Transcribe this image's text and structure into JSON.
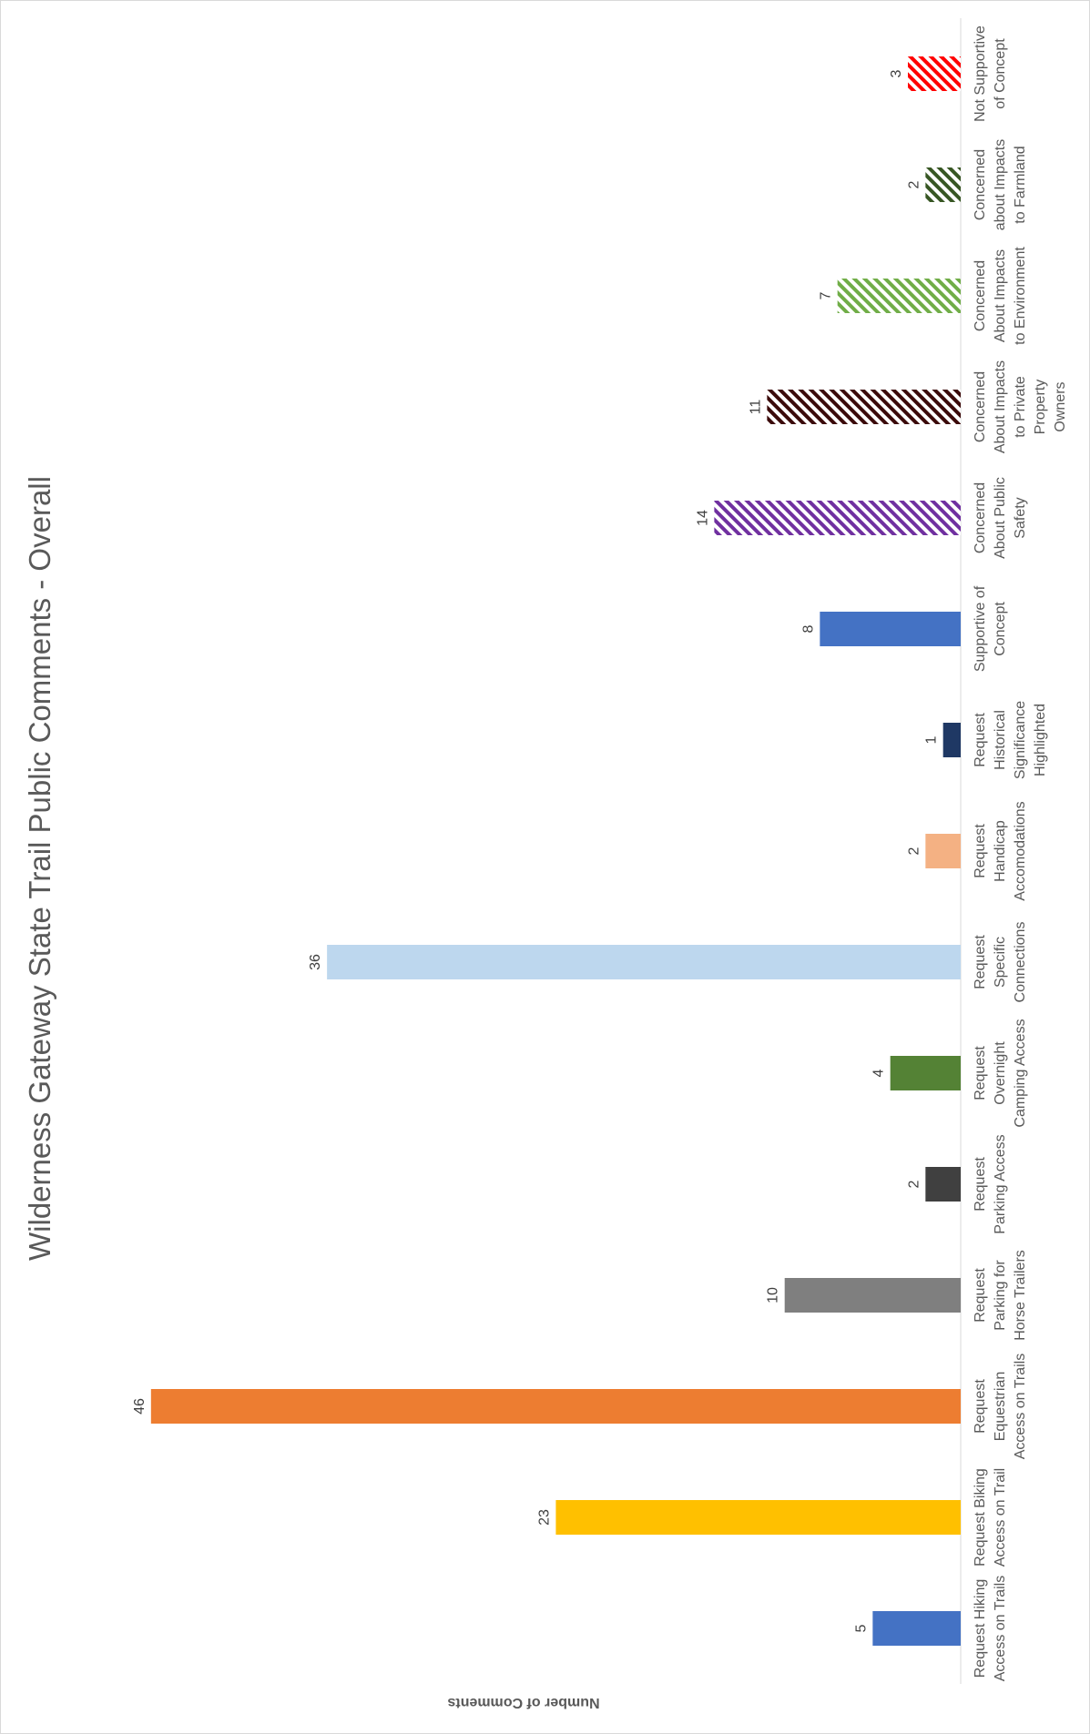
{
  "chart_data": {
    "type": "bar",
    "orientation": "rotated-90",
    "title": "Wilderness Gateway State Trail Public Comments - Overall",
    "ylabel": "Number of Comments",
    "xlabel": "",
    "ylim": [
      0,
      48
    ],
    "grid": false,
    "legend": "none",
    "categories": [
      [
        "Request Hiking",
        "Access on Trails"
      ],
      [
        "Request Biking",
        "Access on Trail"
      ],
      [
        "Request",
        "Equestrian",
        "Access on Trails"
      ],
      [
        "Request",
        "Parking for",
        "Horse Trailers"
      ],
      [
        "Request",
        "Parking Access"
      ],
      [
        "Request",
        "Overnight",
        "Camping Access"
      ],
      [
        "Request",
        "Specific",
        "Connections"
      ],
      [
        "Request",
        "Handicap",
        "Accomodations"
      ],
      [
        "Request",
        "Historical",
        "Significance",
        "Highlighted"
      ],
      [
        "Supportive of",
        "Concept"
      ],
      [
        "Concerned",
        "About Public",
        "Safety"
      ],
      [
        "Concerned",
        "About Impacts",
        "to Private",
        "Property",
        "Owners"
      ],
      [
        "Concerned",
        "About Impacts",
        "to Environment"
      ],
      [
        "Concerned",
        "about Impacts",
        "to Farmland"
      ],
      [
        "Not Supportive",
        "of Concept"
      ]
    ],
    "values": [
      5,
      23,
      46,
      10,
      2,
      4,
      36,
      2,
      1,
      8,
      14,
      11,
      7,
      2,
      3
    ],
    "data_labels": [
      "5",
      "23",
      "46",
      "10",
      "2",
      "4",
      "36",
      "2",
      "1",
      "8",
      "14",
      "11",
      "7",
      "2",
      "3"
    ],
    "colors": [
      "#4472C4",
      "#FFC000",
      "#ED7D31",
      "#7F7F7F",
      "#404040",
      "#548235",
      "#BDD7EE",
      "#F4B183",
      "#1F3864",
      "#4472C4",
      "#7030A0",
      "#3B0A0A",
      "#70AD47",
      "#375623",
      "#FF0000"
    ],
    "hatched": [
      false,
      false,
      false,
      false,
      false,
      false,
      false,
      false,
      false,
      false,
      true,
      true,
      true,
      true,
      true
    ]
  }
}
